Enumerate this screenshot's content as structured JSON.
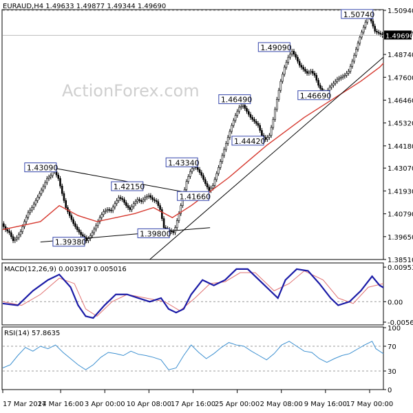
{
  "chart_data": [
    {
      "type": "candlestick",
      "symbol_header": "EURAUD,H4  1.49633 1.49877 1.49344 1.49690",
      "watermark": "ActionForex.com",
      "ylim": [
        1.3851,
        1.5094
      ],
      "y_ticks": [
        "1.50940",
        "1.49800",
        "1.48740",
        "1.47600",
        "1.46460",
        "1.45320",
        "1.44180",
        "1.43070",
        "1.41930",
        "1.40790",
        "1.39650",
        "1.38510"
      ],
      "current_price": "1.49690",
      "x_ticks": [
        "17 Mar 2017",
        "24 Mar 16:00",
        "3 Apr 00:00",
        "10 Apr 08:00",
        "17 Apr 16:00",
        "25 Apr 00:00",
        "2 May 08:00",
        "9 May 16:00",
        "17 May 00:00"
      ],
      "price_labels": [
        "1.43090",
        "1.42150",
        "1.39380",
        "1.39800",
        "1.41660",
        "1.43340",
        "1.46490",
        "1.44420",
        "1.49090",
        "1.46690",
        "1.50740"
      ],
      "close_path": [
        [
          0,
          1.403
        ],
        [
          2,
          1.4
        ],
        [
          4,
          1.3985
        ],
        [
          6,
          1.3945
        ],
        [
          8,
          1.396
        ],
        [
          10,
          1.399
        ],
        [
          12,
          1.404
        ],
        [
          14,
          1.4085
        ],
        [
          16,
          1.411
        ],
        [
          18,
          1.4145
        ],
        [
          20,
          1.418
        ],
        [
          22,
          1.4215
        ],
        [
          24,
          1.4255
        ],
        [
          26,
          1.427
        ],
        [
          27,
          1.43
        ],
        [
          28,
          1.429
        ],
        [
          30,
          1.4255
        ],
        [
          32,
          1.418
        ],
        [
          34,
          1.411
        ],
        [
          36,
          1.407
        ],
        [
          38,
          1.403
        ],
        [
          40,
          1.4
        ],
        [
          42,
          1.3975
        ],
        [
          44,
          1.396
        ],
        [
          45,
          1.3945
        ],
        [
          46,
          1.3955
        ],
        [
          48,
          1.3985
        ],
        [
          50,
          1.402
        ],
        [
          52,
          1.406
        ],
        [
          54,
          1.409
        ],
        [
          56,
          1.41
        ],
        [
          58,
          1.4095
        ],
        [
          60,
          1.413
        ],
        [
          62,
          1.416
        ],
        [
          64,
          1.415
        ],
        [
          66,
          1.412
        ],
        [
          68,
          1.41
        ],
        [
          70,
          1.413
        ],
        [
          72,
          1.415
        ],
        [
          74,
          1.414
        ],
        [
          76,
          1.416
        ],
        [
          78,
          1.417
        ],
        [
          80,
          1.415
        ],
        [
          82,
          1.414
        ],
        [
          84,
          1.41
        ],
        [
          86,
          1.401
        ],
        [
          88,
          1.4
        ],
        [
          90,
          1.399
        ],
        [
          91,
          1.3985
        ],
        [
          92,
          1.401
        ],
        [
          94,
          1.408
        ],
        [
          96,
          1.416
        ],
        [
          98,
          1.424
        ],
        [
          100,
          1.429
        ],
        [
          102,
          1.432
        ],
        [
          104,
          1.43
        ],
        [
          106,
          1.427
        ],
        [
          108,
          1.423
        ],
        [
          110,
          1.4195
        ],
        [
          112,
          1.422
        ],
        [
          114,
          1.428
        ],
        [
          116,
          1.434
        ],
        [
          118,
          1.44
        ],
        [
          120,
          1.446
        ],
        [
          122,
          1.452
        ],
        [
          124,
          1.457
        ],
        [
          126,
          1.461
        ],
        [
          128,
          1.462
        ],
        [
          130,
          1.459
        ],
        [
          132,
          1.456
        ],
        [
          134,
          1.454
        ],
        [
          136,
          1.452
        ],
        [
          138,
          1.447
        ],
        [
          140,
          1.445
        ],
        [
          142,
          1.447
        ],
        [
          144,
          1.455
        ],
        [
          146,
          1.465
        ],
        [
          148,
          1.474
        ],
        [
          150,
          1.481
        ],
        [
          152,
          1.486
        ],
        [
          154,
          1.489
        ],
        [
          156,
          1.486
        ],
        [
          158,
          1.482
        ],
        [
          160,
          1.48
        ],
        [
          162,
          1.478
        ],
        [
          164,
          1.479
        ],
        [
          166,
          1.477
        ],
        [
          168,
          1.472
        ],
        [
          170,
          1.469
        ],
        [
          172,
          1.468
        ],
        [
          174,
          1.471
        ],
        [
          176,
          1.473
        ],
        [
          178,
          1.475
        ],
        [
          180,
          1.476
        ],
        [
          182,
          1.477
        ],
        [
          184,
          1.479
        ],
        [
          186,
          1.484
        ],
        [
          188,
          1.49
        ],
        [
          190,
          1.496
        ],
        [
          192,
          1.501
        ],
        [
          194,
          1.506
        ],
        [
          195,
          1.507
        ],
        [
          196,
          1.504
        ],
        [
          198,
          1.499
        ],
        [
          200,
          1.498
        ],
        [
          202,
          1.4969
        ]
      ],
      "ma_path": [
        [
          0,
          1.4
        ],
        [
          20,
          1.404
        ],
        [
          30,
          1.412
        ],
        [
          40,
          1.407
        ],
        [
          50,
          1.404
        ],
        [
          60,
          1.406
        ],
        [
          70,
          1.408
        ],
        [
          80,
          1.411
        ],
        [
          90,
          1.406
        ],
        [
          100,
          1.412
        ],
        [
          110,
          1.419
        ],
        [
          120,
          1.426
        ],
        [
          130,
          1.434
        ],
        [
          140,
          1.442
        ],
        [
          150,
          1.449
        ],
        [
          160,
          1.456
        ],
        [
          170,
          1.462
        ],
        [
          180,
          1.468
        ],
        [
          190,
          1.474
        ],
        [
          200,
          1.481
        ],
        [
          202,
          1.483
        ]
      ],
      "trendlines": [
        {
          "name": "upper-triangle",
          "from": [
            26,
            1.4309
          ],
          "to": [
            95,
            1.419
          ]
        },
        {
          "name": "lower-triangle",
          "from": [
            20,
            1.3938
          ],
          "to": [
            110,
            1.401
          ]
        },
        {
          "name": "rising-support",
          "from": [
            78,
            1.3851
          ],
          "to": [
            202,
            1.486
          ]
        }
      ]
    },
    {
      "type": "line",
      "title": "MACD(12,26,9) 0.003917 0.005016",
      "ylim": [
        -0.0064,
        0.0105
      ],
      "y_ticks": [
        "0.009538",
        "0.00",
        "-0.005637"
      ],
      "macd_path": [
        [
          0,
          -0.0005
        ],
        [
          8,
          -0.001
        ],
        [
          16,
          0.003
        ],
        [
          24,
          0.006
        ],
        [
          30,
          0.0075
        ],
        [
          36,
          0.004
        ],
        [
          40,
          -0.001
        ],
        [
          44,
          -0.004
        ],
        [
          48,
          -0.0045
        ],
        [
          54,
          -0.001
        ],
        [
          60,
          0.002
        ],
        [
          66,
          0.002
        ],
        [
          72,
          0.001
        ],
        [
          78,
          0.0
        ],
        [
          84,
          0.001
        ],
        [
          88,
          -0.002
        ],
        [
          92,
          -0.003
        ],
        [
          96,
          -0.002
        ],
        [
          100,
          0.002
        ],
        [
          106,
          0.006
        ],
        [
          112,
          0.0045
        ],
        [
          118,
          0.006
        ],
        [
          124,
          0.009
        ],
        [
          130,
          0.009
        ],
        [
          136,
          0.006
        ],
        [
          142,
          0.003
        ],
        [
          146,
          0.001
        ],
        [
          150,
          0.006
        ],
        [
          156,
          0.009
        ],
        [
          162,
          0.0085
        ],
        [
          168,
          0.005
        ],
        [
          174,
          0.001
        ],
        [
          178,
          -0.001
        ],
        [
          184,
          0.0
        ],
        [
          190,
          0.003
        ],
        [
          196,
          0.007
        ],
        [
          200,
          0.0045
        ],
        [
          202,
          0.0039
        ]
      ],
      "signal_path": [
        [
          0,
          0.0
        ],
        [
          10,
          -0.001
        ],
        [
          20,
          0.002
        ],
        [
          30,
          0.0065
        ],
        [
          38,
          0.005
        ],
        [
          44,
          -0.002
        ],
        [
          50,
          -0.004
        ],
        [
          58,
          0.0
        ],
        [
          66,
          0.002
        ],
        [
          76,
          0.001
        ],
        [
          86,
          0.0
        ],
        [
          94,
          -0.0025
        ],
        [
          102,
          0.001
        ],
        [
          110,
          0.005
        ],
        [
          118,
          0.0055
        ],
        [
          126,
          0.008
        ],
        [
          134,
          0.008
        ],
        [
          144,
          0.003
        ],
        [
          152,
          0.005
        ],
        [
          160,
          0.0085
        ],
        [
          170,
          0.006
        ],
        [
          178,
          0.001
        ],
        [
          186,
          -0.0005
        ],
        [
          194,
          0.004
        ],
        [
          202,
          0.005
        ]
      ]
    },
    {
      "type": "line",
      "title": "RSI(14) 57.8635",
      "ylim": [
        0,
        100
      ],
      "y_ticks": [
        "100",
        "70",
        "30",
        "0"
      ],
      "levels": [
        70,
        30
      ],
      "rsi_path": [
        [
          0,
          35
        ],
        [
          4,
          40
        ],
        [
          8,
          55
        ],
        [
          12,
          68
        ],
        [
          16,
          62
        ],
        [
          20,
          70
        ],
        [
          24,
          66
        ],
        [
          28,
          72
        ],
        [
          32,
          60
        ],
        [
          36,
          50
        ],
        [
          40,
          40
        ],
        [
          44,
          32
        ],
        [
          48,
          40
        ],
        [
          52,
          52
        ],
        [
          56,
          60
        ],
        [
          60,
          58
        ],
        [
          64,
          55
        ],
        [
          68,
          62
        ],
        [
          72,
          57
        ],
        [
          76,
          55
        ],
        [
          80,
          52
        ],
        [
          84,
          48
        ],
        [
          88,
          32
        ],
        [
          92,
          35
        ],
        [
          96,
          55
        ],
        [
          100,
          72
        ],
        [
          104,
          60
        ],
        [
          108,
          50
        ],
        [
          112,
          58
        ],
        [
          116,
          68
        ],
        [
          120,
          76
        ],
        [
          124,
          72
        ],
        [
          128,
          70
        ],
        [
          132,
          62
        ],
        [
          136,
          55
        ],
        [
          140,
          48
        ],
        [
          144,
          58
        ],
        [
          148,
          72
        ],
        [
          152,
          78
        ],
        [
          156,
          70
        ],
        [
          160,
          62
        ],
        [
          164,
          60
        ],
        [
          168,
          50
        ],
        [
          172,
          44
        ],
        [
          176,
          50
        ],
        [
          180,
          55
        ],
        [
          184,
          58
        ],
        [
          188,
          65
        ],
        [
          192,
          72
        ],
        [
          196,
          78
        ],
        [
          198,
          66
        ],
        [
          202,
          58
        ]
      ]
    }
  ],
  "colors": {
    "candle": "#000000",
    "ma": "#d6382e",
    "macd": "#1a1aa6",
    "signal": "#e07070",
    "rsi": "#3b8fd0",
    "trend": "#000000",
    "label_border": "#3344aa",
    "grid_dash": "#999999"
  }
}
